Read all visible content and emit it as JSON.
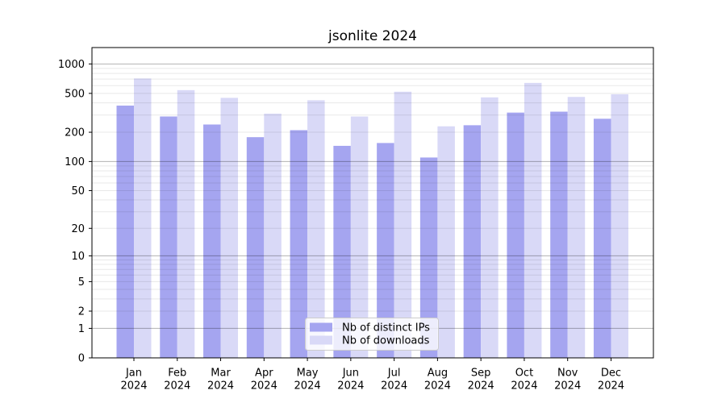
{
  "chart_data": {
    "type": "bar",
    "title": "jsonlite 2024",
    "categories": [
      "Jan 2024",
      "Feb 2024",
      "Mar 2024",
      "Apr 2024",
      "May 2024",
      "Jun 2024",
      "Jul 2024",
      "Aug 2024",
      "Sep 2024",
      "Oct 2024",
      "Nov 2024",
      "Dec 2024"
    ],
    "series": [
      {
        "name": "Nb of distinct IPs",
        "color": "#a5a5f0",
        "values": [
          375,
          290,
          240,
          178,
          210,
          145,
          155,
          110,
          236,
          318,
          325,
          275
        ]
      },
      {
        "name": "Nb of downloads",
        "color": "#d9d9f7",
        "values": [
          710,
          540,
          450,
          310,
          425,
          290,
          520,
          230,
          455,
          640,
          460,
          490
        ]
      }
    ],
    "xlabel": "",
    "ylabel": "",
    "yscale": "log1p",
    "ylim": [
      0,
      1470
    ],
    "yticks": [
      0,
      1,
      2,
      5,
      10,
      20,
      50,
      100,
      200,
      500,
      1000
    ],
    "grid": "horizontal, major lines at 1/10/100/1000, faint minor lines at 2-9 per decade, drawn over bars",
    "legend_position": "lower center inside plot",
    "colors": {
      "background": "#ffffff",
      "axis": "#000000",
      "major_grid": "#b3b3b3",
      "minor_grid": "#e8e8e8",
      "legend_border": "#cccccc",
      "legend_background": "rgba(255,255,255,0.8)"
    }
  }
}
